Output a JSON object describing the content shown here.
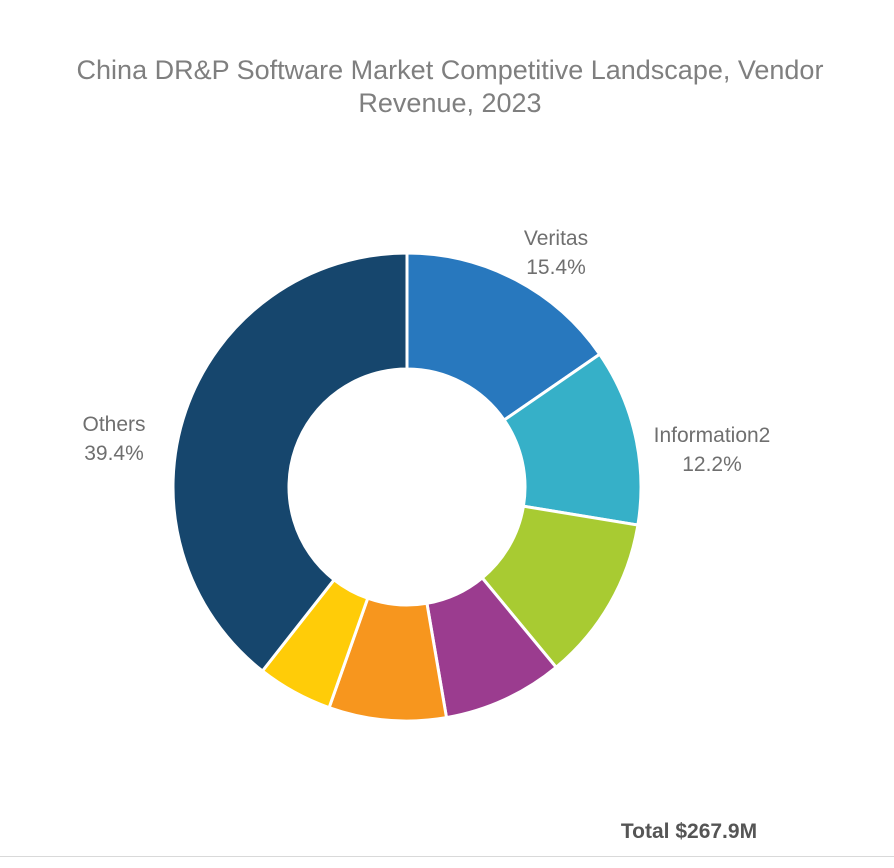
{
  "chart_data": {
    "type": "pie",
    "title_lines": [
      "China DR&P Software Market Competitive Landscape, Vendor",
      "Revenue, 2023"
    ],
    "total_label": "Total $267.9M",
    "series": [
      {
        "name": "Veritas",
        "value": 15.4,
        "value_label": "15.4%",
        "color": "#2878BE"
      },
      {
        "name": "Information2",
        "value": 12.2,
        "value_label": "12.2%",
        "color": "#36B0C8"
      },
      {
        "name": "",
        "value": 11.4,
        "value_label": "",
        "color": "#A8CB32"
      },
      {
        "name": "",
        "value": 8.3,
        "value_label": "",
        "color": "#9B3C8F"
      },
      {
        "name": "",
        "value": 8.1,
        "value_label": "",
        "color": "#F7961E"
      },
      {
        "name": "",
        "value": 5.2,
        "value_label": "",
        "color": "#FFCC08"
      },
      {
        "name": "Others",
        "value": 39.4,
        "value_label": "39.4%",
        "color": "#16466D"
      }
    ],
    "legend": "none"
  }
}
